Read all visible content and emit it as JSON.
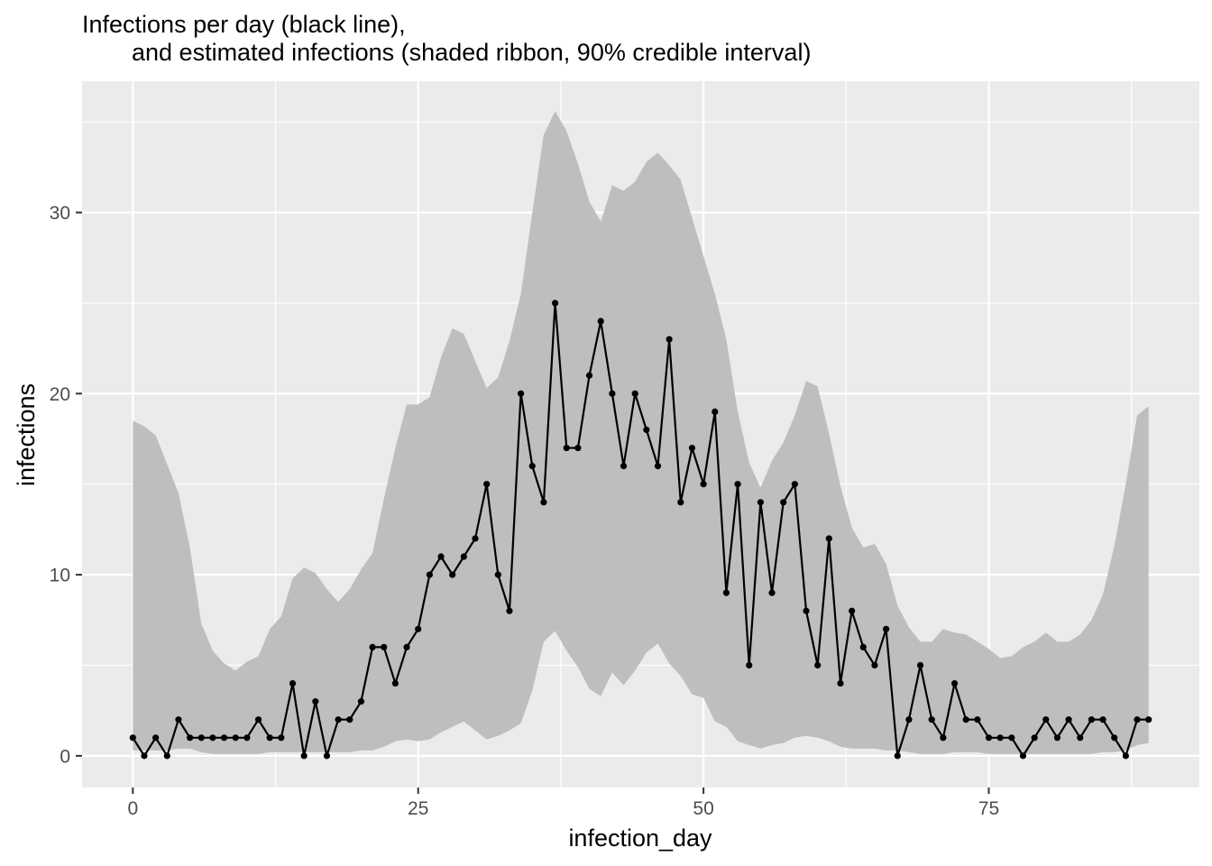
{
  "chart_data": {
    "type": "line",
    "title": "Infections per day (black line),",
    "subtitle": "and estimated infections (shaded ribbon, 90% credible interval)",
    "xlabel": "infection_day",
    "ylabel": "infections",
    "xlim": [
      -4.45,
      93.45
    ],
    "ylim": [
      -1.75,
      37.25
    ],
    "x_ticks": [
      0,
      25,
      50,
      75
    ],
    "y_ticks": [
      0,
      10,
      20,
      30
    ],
    "grid": true,
    "colors": {
      "panel": "#ebebeb",
      "grid": "#ffffff",
      "ribbon": "#bebebe",
      "line": "#000000",
      "tick_text": "#4d4d4d",
      "tick_mark": "#333333"
    },
    "series": [
      {
        "values": [
          1,
          0,
          1,
          0,
          2,
          1,
          1,
          1,
          1,
          1,
          1,
          2,
          1,
          1,
          4,
          0,
          3,
          0,
          2,
          2,
          3,
          6,
          6,
          4,
          6,
          7,
          10,
          11,
          10,
          11,
          12,
          15,
          10,
          8,
          20,
          16,
          14,
          25,
          17,
          17,
          21,
          24,
          20,
          16,
          20,
          18,
          16,
          23,
          14,
          17,
          15,
          19,
          9,
          15,
          5,
          14,
          9,
          14,
          15,
          8,
          5,
          12,
          4,
          8,
          6,
          5,
          7,
          0,
          2,
          5,
          2,
          1,
          4,
          2,
          2,
          1,
          1,
          1,
          0,
          1,
          2,
          1,
          2,
          1,
          2,
          2,
          1,
          0,
          2,
          2
        ]
      }
    ],
    "ribbon": {
      "upper": [
        18.5,
        18.2,
        17.7,
        16.1,
        14.5,
        11.5,
        7.3,
        5.8,
        5.1,
        4.7,
        5.2,
        5.5,
        7.0,
        7.7,
        9.8,
        10.4,
        10.1,
        9.2,
        8.5,
        9.2,
        10.3,
        11.2,
        14.2,
        17.0,
        19.4,
        19.4,
        19.8,
        22.0,
        23.6,
        23.3,
        21.8,
        20.3,
        20.9,
        22.9,
        25.5,
        30.0,
        34.3,
        35.6,
        34.5,
        32.7,
        30.6,
        29.5,
        31.5,
        31.2,
        31.7,
        32.8,
        33.3,
        32.6,
        31.8,
        29.7,
        27.6,
        25.5,
        23.0,
        19.0,
        16.2,
        14.8,
        16.3,
        17.3,
        18.8,
        20.7,
        20.4,
        17.8,
        14.9,
        12.6,
        11.5,
        11.7,
        10.6,
        8.3,
        7.1,
        6.3,
        6.3,
        7.0,
        6.8,
        6.7,
        6.3,
        5.9,
        5.4,
        5.5,
        6.0,
        6.3,
        6.8,
        6.3,
        6.3,
        6.7,
        7.5,
        8.9,
        11.6,
        15.0,
        18.8,
        19.3
      ],
      "lower": [
        0.3,
        0.3,
        0.3,
        0.3,
        0.4,
        0.4,
        0.2,
        0.1,
        0.1,
        0.1,
        0.1,
        0.1,
        0.2,
        0.2,
        0.2,
        0.2,
        0.2,
        0.2,
        0.2,
        0.2,
        0.3,
        0.3,
        0.5,
        0.8,
        0.9,
        0.8,
        0.9,
        1.3,
        1.6,
        1.9,
        1.4,
        0.9,
        1.1,
        1.4,
        1.8,
        3.6,
        6.3,
        6.9,
        5.8,
        4.9,
        3.7,
        3.3,
        4.6,
        3.9,
        4.7,
        5.7,
        6.2,
        5.1,
        4.4,
        3.4,
        3.2,
        1.9,
        1.6,
        0.8,
        0.6,
        0.4,
        0.6,
        0.7,
        1.0,
        1.1,
        1.0,
        0.8,
        0.5,
        0.4,
        0.4,
        0.4,
        0.3,
        0.3,
        0.2,
        0.1,
        0.1,
        0.1,
        0.2,
        0.2,
        0.2,
        0.1,
        0.1,
        0.1,
        0.1,
        0.1,
        0.1,
        0.1,
        0.1,
        0.1,
        0.1,
        0.2,
        0.2,
        0.3,
        0.6,
        0.7
      ]
    }
  }
}
